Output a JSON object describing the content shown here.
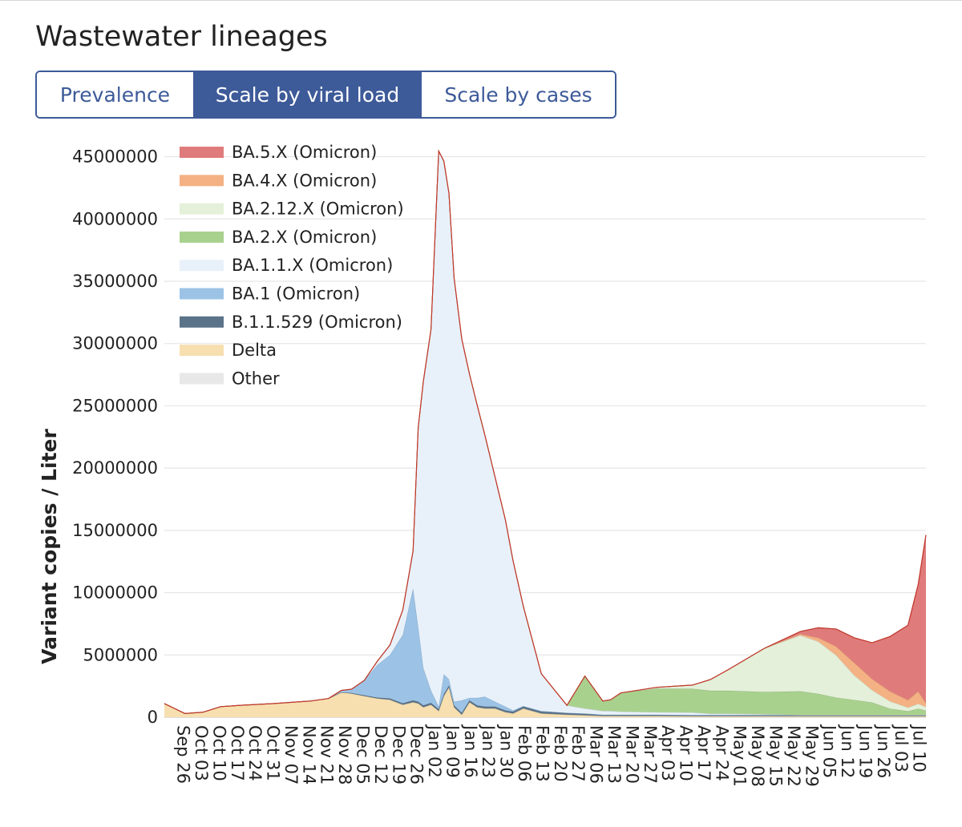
{
  "header": {
    "title": "Wastewater lineages",
    "tabs": [
      {
        "label": "Prevalence",
        "active": false
      },
      {
        "label": "Scale by viral load",
        "active": true
      },
      {
        "label": "Scale by cases",
        "active": false
      }
    ]
  },
  "colors": {
    "accent": "#3d5a99",
    "top_line": "#c0392b",
    "grid": "#e6e6e6"
  },
  "chart_data": {
    "type": "area",
    "stacked": true,
    "title": "",
    "ylabel": "Variant copies / Liter",
    "xlabel": "",
    "ylim": [
      0,
      46000000
    ],
    "yticks": [
      0,
      5000000,
      10000000,
      15000000,
      20000000,
      25000000,
      30000000,
      35000000,
      40000000,
      45000000
    ],
    "ytick_labels": [
      "0",
      "5000000",
      "10000000",
      "15000000",
      "20000000",
      "25000000",
      "30000000",
      "35000000",
      "40000000",
      "45000000"
    ],
    "x_range": [
      "2021-09-23",
      "2022-07-17"
    ],
    "xticks": [
      "2021-09-26",
      "2021-10-03",
      "2021-10-10",
      "2021-10-17",
      "2021-10-24",
      "2021-10-31",
      "2021-11-07",
      "2021-11-14",
      "2021-11-21",
      "2021-11-28",
      "2021-12-05",
      "2021-12-12",
      "2021-12-19",
      "2021-12-26",
      "2022-01-02",
      "2022-01-09",
      "2022-01-16",
      "2022-01-23",
      "2022-01-30",
      "2022-02-06",
      "2022-02-13",
      "2022-02-20",
      "2022-02-27",
      "2022-03-06",
      "2022-03-13",
      "2022-03-20",
      "2022-03-27",
      "2022-04-03",
      "2022-04-10",
      "2022-04-17",
      "2022-04-24",
      "2022-05-01",
      "2022-05-08",
      "2022-05-15",
      "2022-05-22",
      "2022-05-29",
      "2022-06-05",
      "2022-06-12",
      "2022-06-19",
      "2022-06-26",
      "2022-07-03",
      "2022-07-10"
    ],
    "xtick_labels": [
      "Sep 26",
      "Oct 03",
      "Oct 10",
      "Oct 17",
      "Oct 24",
      "Oct 31",
      "Nov 07",
      "Nov 14",
      "Nov 21",
      "Nov 28",
      "Dec 05",
      "Dec 12",
      "Dec 19",
      "Dec 26",
      "Jan 02",
      "Jan 09",
      "Jan 16",
      "Jan 23",
      "Jan 30",
      "Feb 06",
      "Feb 13",
      "Feb 20",
      "Feb 27",
      "Mar 06",
      "Mar 13",
      "Mar 20",
      "Mar 27",
      "Apr 03",
      "Apr 10",
      "Apr 17",
      "Apr 24",
      "May 01",
      "May 08",
      "May 15",
      "May 22",
      "May 29",
      "Jun 05",
      "Jun 12",
      "Jun 19",
      "Jun 26",
      "Jul 03",
      "Jul 10"
    ],
    "grid": true,
    "legend_position": "top-left",
    "x": [
      "2021-09-23",
      "2021-10-01",
      "2021-10-08",
      "2021-10-15",
      "2021-10-19",
      "2021-10-22",
      "2021-11-05",
      "2021-11-19",
      "2021-11-26",
      "2021-12-01",
      "2021-12-05",
      "2021-12-10",
      "2021-12-15",
      "2021-12-20",
      "2021-12-25",
      "2021-12-29",
      "2021-12-31",
      "2022-01-02",
      "2022-01-05",
      "2022-01-08",
      "2022-01-10",
      "2022-01-12",
      "2022-01-14",
      "2022-01-17",
      "2022-01-20",
      "2022-01-23",
      "2022-01-26",
      "2022-01-30",
      "2022-02-03",
      "2022-02-06",
      "2022-02-10",
      "2022-02-17",
      "2022-02-27",
      "2022-03-06",
      "2022-03-13",
      "2022-03-16",
      "2022-03-20",
      "2022-04-03",
      "2022-04-17",
      "2022-04-24",
      "2022-05-01",
      "2022-05-15",
      "2022-05-29",
      "2022-06-05",
      "2022-06-12",
      "2022-06-19",
      "2022-06-26",
      "2022-07-03",
      "2022-07-10",
      "2022-07-14",
      "2022-07-17"
    ],
    "series": [
      {
        "name": "Other",
        "color": "#e8e8e8",
        "values": [
          0,
          0,
          0,
          0,
          0,
          0,
          0,
          0,
          0,
          0,
          0,
          0,
          0,
          0,
          0,
          0,
          0,
          0,
          0,
          0,
          0,
          0,
          0,
          0,
          0,
          0,
          0,
          0,
          0,
          0,
          0,
          0,
          0,
          0,
          0,
          0,
          0,
          0,
          0,
          0,
          0,
          0,
          0,
          0,
          0,
          0,
          0,
          0,
          0,
          0,
          0
        ]
      },
      {
        "name": "Delta",
        "color": "#f7dfb0",
        "values": [
          1100000,
          300000,
          400000,
          850000,
          900000,
          950000,
          1100000,
          1300000,
          1500000,
          2000000,
          1900000,
          1700000,
          1500000,
          1400000,
          1000000,
          1200000,
          1100000,
          800000,
          1000000,
          500000,
          1700000,
          2400000,
          800000,
          200000,
          1200000,
          800000,
          700000,
          700000,
          400000,
          300000,
          700000,
          300000,
          200000,
          150000,
          100000,
          100000,
          100000,
          100000,
          80000,
          80000,
          80000,
          80000,
          80000,
          80000,
          80000,
          80000,
          80000,
          80000,
          80000,
          80000,
          80000
        ]
      },
      {
        "name": "B.1.1.529 (Omicron)",
        "color": "#5a7389",
        "values": [
          0,
          0,
          0,
          0,
          0,
          0,
          0,
          0,
          0,
          0,
          50000,
          60000,
          80000,
          100000,
          120000,
          150000,
          150000,
          150000,
          150000,
          150000,
          150000,
          150000,
          150000,
          150000,
          150000,
          150000,
          150000,
          150000,
          150000,
          150000,
          150000,
          150000,
          150000,
          150000,
          100000,
          100000,
          100000,
          100000,
          100000,
          100000,
          100000,
          100000,
          100000,
          100000,
          100000,
          100000,
          100000,
          100000,
          100000,
          100000,
          100000
        ]
      },
      {
        "name": "BA.1 (Omicron)",
        "color": "#9cc3e6",
        "values": [
          0,
          0,
          0,
          0,
          0,
          0,
          0,
          0,
          0,
          150000,
          300000,
          1200000,
          2600000,
          3500000,
          5500000,
          9000000,
          6000000,
          3000000,
          1000000,
          200000,
          1600000,
          500000,
          300000,
          1000000,
          200000,
          600000,
          800000,
          400000,
          300000,
          100000,
          50000,
          50000,
          0,
          0,
          0,
          0,
          0,
          0,
          0,
          0,
          0,
          0,
          0,
          0,
          0,
          0,
          0,
          0,
          0,
          0,
          0
        ]
      },
      {
        "name": "BA.1.1.X (Omicron)",
        "color": "#e8f1fa",
        "values": [
          0,
          0,
          0,
          0,
          0,
          0,
          0,
          0,
          0,
          0,
          0,
          0,
          300000,
          800000,
          2000000,
          3000000,
          16000000,
          23000000,
          29000000,
          44600000,
          41200000,
          39000000,
          34000000,
          29000000,
          26000000,
          23500000,
          21000000,
          18000000,
          15000000,
          12000000,
          8000000,
          3000000,
          600000,
          400000,
          300000,
          300000,
          250000,
          200000,
          200000,
          100000,
          100000,
          50000,
          0,
          0,
          0,
          0,
          0,
          0,
          0,
          0,
          0
        ]
      },
      {
        "name": "BA.2.X (Omicron)",
        "color": "#a9d18e",
        "values": [
          0,
          0,
          0,
          0,
          0,
          0,
          0,
          0,
          0,
          0,
          0,
          0,
          0,
          0,
          0,
          0,
          0,
          0,
          0,
          0,
          0,
          0,
          0,
          0,
          0,
          0,
          0,
          0,
          0,
          0,
          0,
          0,
          0,
          2600000,
          800000,
          900000,
          1500000,
          1900000,
          1900000,
          1850000,
          1850000,
          1800000,
          1900000,
          1700000,
          1400000,
          1200000,
          1000000,
          500000,
          300000,
          500000,
          350000
        ]
      },
      {
        "name": "BA.2.12.X (Omicron)",
        "color": "#e4f0d9",
        "values": [
          0,
          0,
          0,
          0,
          0,
          0,
          0,
          0,
          0,
          0,
          0,
          0,
          0,
          0,
          0,
          0,
          0,
          0,
          0,
          0,
          0,
          0,
          0,
          0,
          0,
          0,
          0,
          0,
          0,
          0,
          0,
          0,
          0,
          0,
          0,
          0,
          0,
          100000,
          300000,
          900000,
          1700000,
          3500000,
          4500000,
          4200000,
          3400000,
          2000000,
          1000000,
          600000,
          300000,
          400000,
          300000
        ]
      },
      {
        "name": "BA.4.X (Omicron)",
        "color": "#f4b183",
        "values": [
          0,
          0,
          0,
          0,
          0,
          0,
          0,
          0,
          0,
          0,
          0,
          0,
          0,
          0,
          0,
          0,
          0,
          0,
          0,
          0,
          0,
          0,
          0,
          0,
          0,
          0,
          0,
          0,
          0,
          0,
          0,
          0,
          0,
          0,
          0,
          0,
          0,
          0,
          0,
          0,
          0,
          0,
          100000,
          300000,
          700000,
          1000000,
          900000,
          800000,
          600000,
          1000000,
          300000
        ]
      },
      {
        "name": "BA.5.X (Omicron)",
        "color": "#e07b7b",
        "values": [
          0,
          0,
          0,
          0,
          0,
          0,
          0,
          0,
          0,
          0,
          0,
          0,
          0,
          0,
          0,
          0,
          0,
          0,
          0,
          0,
          0,
          0,
          0,
          0,
          0,
          0,
          0,
          0,
          0,
          0,
          0,
          0,
          0,
          0,
          0,
          0,
          0,
          0,
          0,
          0,
          0,
          0,
          200000,
          800000,
          1400000,
          2000000,
          2900000,
          4400000,
          6000000,
          8600000,
          13500000
        ]
      }
    ]
  }
}
